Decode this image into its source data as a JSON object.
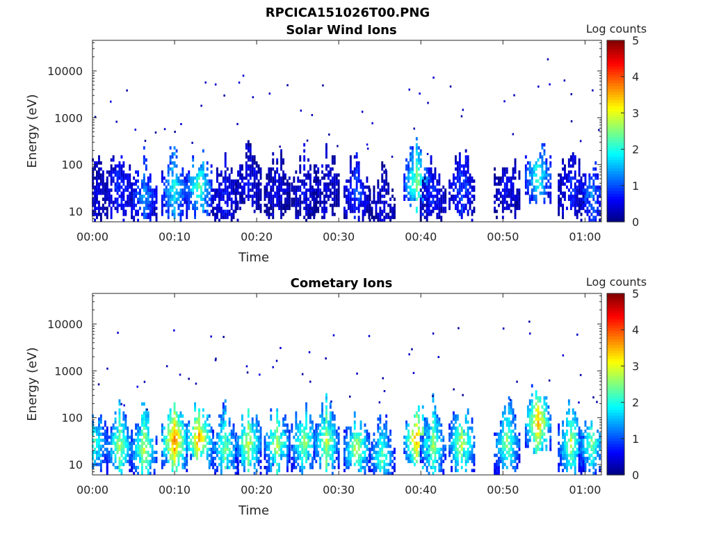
{
  "figure_title": "RPCICA151026T00.PNG",
  "chart_data": [
    {
      "type": "heatmap",
      "title": "Solar Wind Ions",
      "xlabel": "Time",
      "ylabel": "Energy (eV)",
      "colorbar_label": "Log counts",
      "x_ticks": [
        "00:00",
        "00:10",
        "00:20",
        "00:30",
        "00:40",
        "00:50",
        "01:00"
      ],
      "x_tick_minutes": [
        0,
        10,
        20,
        30,
        40,
        50,
        60
      ],
      "xlim_minutes": [
        0,
        62
      ],
      "y_ticks": [
        "10",
        "100",
        "1000",
        "10000"
      ],
      "y_tick_values": [
        10,
        100,
        1000,
        10000
      ],
      "ylim": [
        6,
        45000
      ],
      "y_scale": "log",
      "clim": [
        0,
        5
      ],
      "colorbar_ticks": [
        "0",
        "1",
        "2",
        "3",
        "4",
        "5"
      ],
      "colormap": "jet",
      "grid": false,
      "bursts": [
        {
          "t": 0.3,
          "e": 25,
          "v": 0.5
        },
        {
          "t": 3.3,
          "e": 30,
          "v": 0.9
        },
        {
          "t": 6.3,
          "e": 22,
          "v": 1.4
        },
        {
          "t": 10.0,
          "e": 30,
          "v": 2.0
        },
        {
          "t": 13.0,
          "e": 35,
          "v": 2.4
        },
        {
          "t": 16.2,
          "e": 20,
          "v": 0.7
        },
        {
          "t": 19.0,
          "e": 40,
          "v": 0.6
        },
        {
          "t": 22.5,
          "e": 30,
          "v": 0.5
        },
        {
          "t": 25.8,
          "e": 30,
          "v": 0.6
        },
        {
          "t": 28.5,
          "e": 35,
          "v": 0.5
        },
        {
          "t": 32.2,
          "e": 25,
          "v": 1.0
        },
        {
          "t": 35.3,
          "e": 12,
          "v": 0.5
        },
        {
          "t": 39.5,
          "e": 40,
          "v": 2.6
        },
        {
          "t": 41.5,
          "e": 25,
          "v": 0.8
        },
        {
          "t": 45.0,
          "e": 30,
          "v": 1.0
        },
        {
          "t": 50.5,
          "e": 30,
          "v": 0.6
        },
        {
          "t": 54.3,
          "e": 60,
          "v": 2.2
        },
        {
          "t": 58.3,
          "e": 30,
          "v": 0.8
        },
        {
          "t": 60.8,
          "e": 25,
          "v": 1.3
        }
      ]
    },
    {
      "type": "heatmap",
      "title": "Cometary Ions",
      "xlabel": "Time",
      "ylabel": "Energy (eV)",
      "colorbar_label": "Log counts",
      "x_ticks": [
        "00:00",
        "00:10",
        "00:20",
        "00:30",
        "00:40",
        "00:50",
        "01:00"
      ],
      "x_tick_minutes": [
        0,
        10,
        20,
        30,
        40,
        50,
        60
      ],
      "xlim_minutes": [
        0,
        62
      ],
      "y_ticks": [
        "10",
        "100",
        "1000",
        "10000"
      ],
      "y_tick_values": [
        10,
        100,
        1000,
        10000
      ],
      "ylim": [
        6,
        45000
      ],
      "y_scale": "log",
      "clim": [
        0,
        5
      ],
      "colorbar_ticks": [
        "0",
        "1",
        "2",
        "3",
        "4",
        "5"
      ],
      "colormap": "jet",
      "grid": false,
      "bursts": [
        {
          "t": 0.3,
          "e": 30,
          "v": 2.3
        },
        {
          "t": 3.3,
          "e": 25,
          "v": 2.8
        },
        {
          "t": 6.3,
          "e": 22,
          "v": 2.9
        },
        {
          "t": 10.0,
          "e": 32,
          "v": 3.9
        },
        {
          "t": 13.0,
          "e": 35,
          "v": 3.8
        },
        {
          "t": 16.2,
          "e": 22,
          "v": 2.6
        },
        {
          "t": 19.0,
          "e": 30,
          "v": 3.0
        },
        {
          "t": 22.5,
          "e": 28,
          "v": 2.9
        },
        {
          "t": 25.8,
          "e": 30,
          "v": 2.8
        },
        {
          "t": 28.5,
          "e": 30,
          "v": 2.9
        },
        {
          "t": 32.2,
          "e": 22,
          "v": 3.0
        },
        {
          "t": 35.3,
          "e": 15,
          "v": 2.4
        },
        {
          "t": 39.5,
          "e": 35,
          "v": 3.7
        },
        {
          "t": 41.5,
          "e": 25,
          "v": 2.7
        },
        {
          "t": 45.0,
          "e": 30,
          "v": 3.0
        },
        {
          "t": 50.5,
          "e": 30,
          "v": 2.6
        },
        {
          "t": 54.3,
          "e": 80,
          "v": 3.6
        },
        {
          "t": 58.3,
          "e": 30,
          "v": 2.8
        },
        {
          "t": 60.8,
          "e": 28,
          "v": 2.6
        }
      ]
    }
  ]
}
